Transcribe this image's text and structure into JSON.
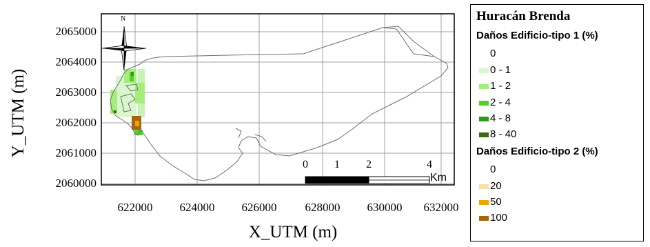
{
  "axes": {
    "y_label": "Y_UTM (m)",
    "x_label": "X_UTM (m)",
    "y_ticks": [
      "2065000",
      "2064000",
      "2063000",
      "2062000",
      "2061000",
      "2060000"
    ],
    "x_ticks": [
      "622000",
      "624000",
      "626000",
      "628000",
      "630000",
      "632000"
    ]
  },
  "map": {
    "north_arrow_label": "N",
    "frame_color": "#000000",
    "grid_color": "#a0a0a0",
    "coastline_color": "#6e6e6e",
    "scale_bar": {
      "ticks": [
        "0",
        "1",
        "2",
        "4"
      ],
      "unit": "Km"
    }
  },
  "legend": {
    "title": "Huracán Brenda",
    "groups": [
      {
        "heading": "Daños Edificio-tipo 1 (%)",
        "items": [
          {
            "label": "0",
            "color": ""
          },
          {
            "label": "0 - 1",
            "color": "#d9f7cc"
          },
          {
            "label": "1 - 2",
            "color": "#a6ee7c"
          },
          {
            "label": "2 - 4",
            "color": "#4fd12a"
          },
          {
            "label": "4 - 8",
            "color": "#2f9a1a"
          },
          {
            "label": "8 - 40",
            "color": "#3b6a0f"
          }
        ]
      },
      {
        "heading": "Daños Edificio-tipo 2 (%)",
        "items": [
          {
            "label": "0",
            "color": ""
          },
          {
            "label": "20",
            "color": "#f5deb0"
          },
          {
            "label": "50",
            "color": "#f0a500"
          },
          {
            "label": "100",
            "color": "#a8650c"
          }
        ]
      }
    ]
  }
}
